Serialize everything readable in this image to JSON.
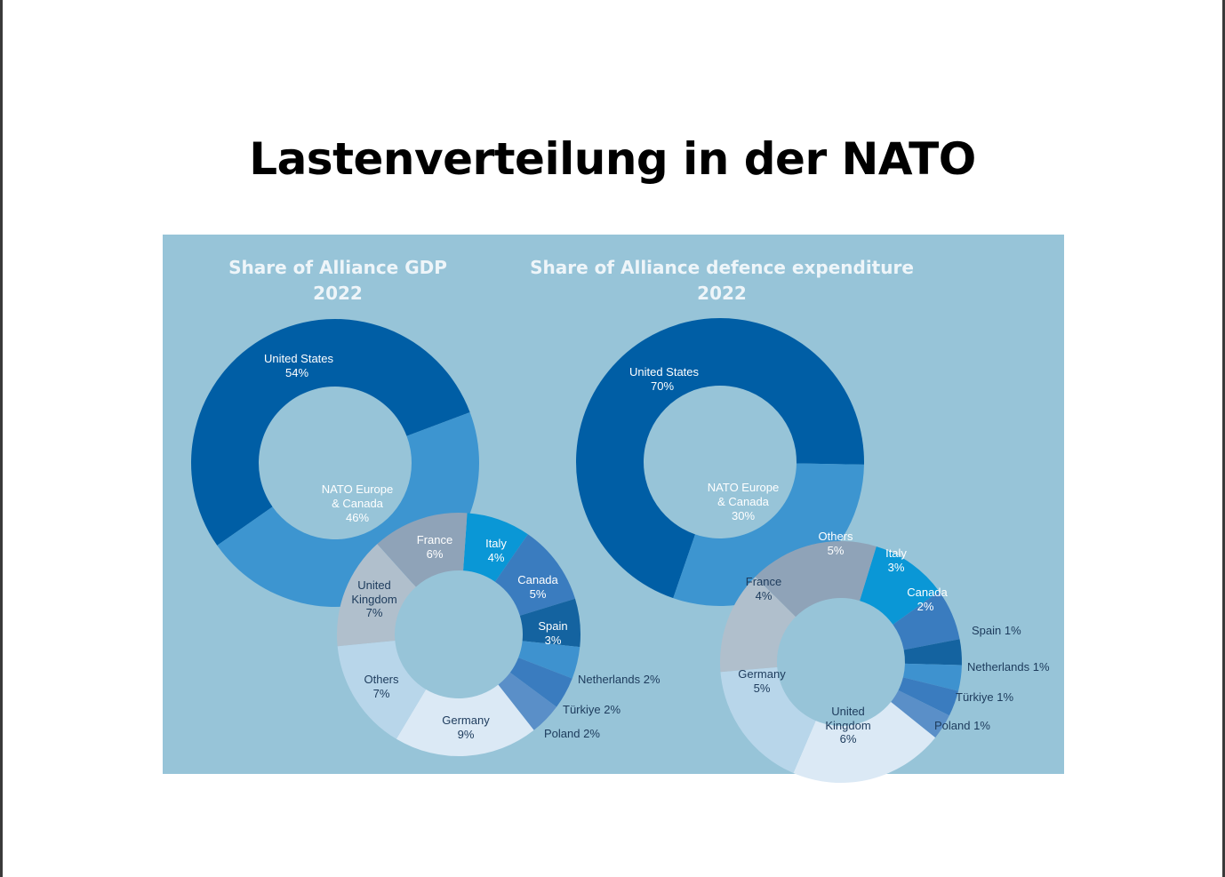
{
  "slide": {
    "title": "Lastenverteilung in der NATO"
  },
  "colors": {
    "panel": "#97c4d8",
    "us": "#005ea5",
    "europe": "#3d95d0"
  },
  "chart_data": [
    {
      "type": "pie",
      "variant": "donut",
      "title": "Share of Alliance GDP",
      "subtitle": "2022",
      "slices": [
        {
          "label": "United States",
          "value": 54,
          "value_label": "54%",
          "color": "#005ea5"
        },
        {
          "label": "NATO Europe & Canada",
          "label_line1": "NATO Europe",
          "label_line2": "& Canada",
          "value": 46,
          "value_label": "46%",
          "color": "#3d95d0"
        }
      ],
      "breakdown": {
        "of": "NATO Europe & Canada",
        "slices": [
          {
            "label": "Italy",
            "value": 4,
            "value_label": "4%",
            "color": "#0a97d6"
          },
          {
            "label": "Canada",
            "value": 5,
            "value_label": "5%",
            "color": "#3a7cbf"
          },
          {
            "label": "Spain",
            "value": 3,
            "value_label": "3%",
            "color": "#1463a0"
          },
          {
            "label": "Netherlands",
            "value": 2,
            "value_label": "Netherlands 2%",
            "color": "#3e92cf"
          },
          {
            "label": "Türkiye",
            "value": 2,
            "value_label": "Türkiye 2%",
            "color": "#3a7cbf"
          },
          {
            "label": "Poland",
            "value": 2,
            "value_label": "Poland 2%",
            "color": "#5a8fc8"
          },
          {
            "label": "Germany",
            "value": 9,
            "value_label": "9%",
            "color": "#dbe9f5"
          },
          {
            "label": "Others",
            "value": 7,
            "value_label": "7%",
            "color": "#b8d6ea"
          },
          {
            "label": "United Kingdom",
            "label_line1": "United",
            "label_line2": "Kingdom",
            "value": 7,
            "value_label": "7%",
            "color": "#b0bfcc"
          },
          {
            "label": "France",
            "value": 6,
            "value_label": "6%",
            "color": "#8fa3b8"
          }
        ]
      }
    },
    {
      "type": "pie",
      "variant": "donut",
      "title": "Share of Alliance defence expenditure",
      "subtitle": "2022",
      "slices": [
        {
          "label": "United States",
          "value": 70,
          "value_label": "70%",
          "color": "#005ea5"
        },
        {
          "label": "NATO Europe & Canada",
          "label_line1": "NATO Europe",
          "label_line2": "& Canada",
          "value": 30,
          "value_label": "30%",
          "color": "#3d95d0"
        }
      ],
      "breakdown": {
        "of": "NATO Europe & Canada",
        "slices": [
          {
            "label": "Italy",
            "value": 3,
            "value_label": "3%",
            "color": "#0a97d6"
          },
          {
            "label": "Canada",
            "value": 2,
            "value_label": "2%",
            "color": "#3a7cbf"
          },
          {
            "label": "Spain",
            "value": 1,
            "value_label": "Spain 1%",
            "color": "#1463a0"
          },
          {
            "label": "Netherlands",
            "value": 1,
            "value_label": "Netherlands 1%",
            "color": "#3e92cf"
          },
          {
            "label": "Türkiye",
            "value": 1,
            "value_label": "Türkiye 1%",
            "color": "#3a7cbf"
          },
          {
            "label": "Poland",
            "value": 1,
            "value_label": "Poland 1%",
            "color": "#5a8fc8"
          },
          {
            "label": "United Kingdom",
            "label_line1": "United",
            "label_line2": "Kingdom",
            "value": 6,
            "value_label": "6%",
            "color": "#dbe9f5"
          },
          {
            "label": "Germany",
            "value": 5,
            "value_label": "5%",
            "color": "#b8d6ea"
          },
          {
            "label": "France",
            "value": 4,
            "value_label": "4%",
            "color": "#b0bfcc"
          },
          {
            "label": "Others",
            "value": 5,
            "value_label": "5%",
            "color": "#8fa3b8"
          }
        ]
      }
    }
  ]
}
